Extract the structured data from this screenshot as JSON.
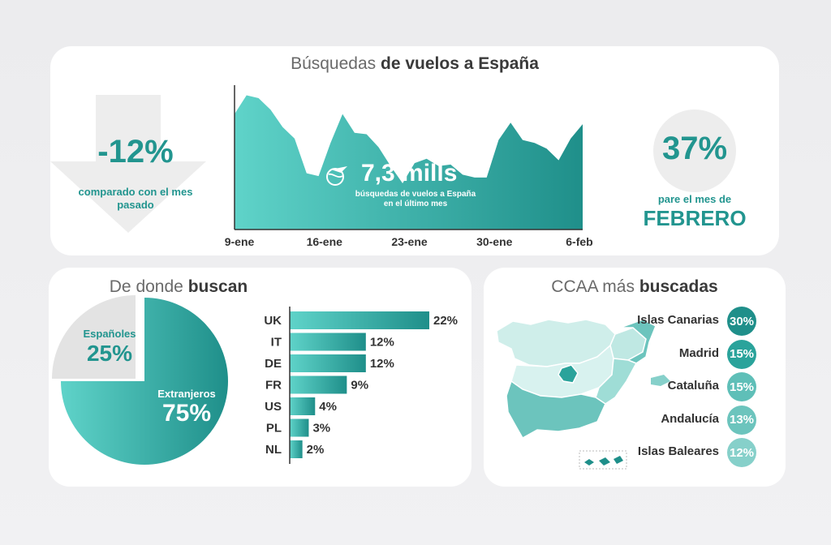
{
  "colors": {
    "teal_dark": "#1f8f8a",
    "teal_light": "#5fd3c9",
    "grey": "#e5e5e5"
  },
  "top": {
    "title_light": "Búsquedas",
    "title_bold": "de vuelos a España",
    "change_value": "-12%",
    "change_caption_line1": "comparado con el mes",
    "change_caption_line2": "pasado",
    "total_value": "7,3 mills",
    "total_caption_line1": "búsquedas de vuelos a España",
    "total_caption_line2": "en el último mes",
    "right_value": "37%",
    "right_caption": "pare el mes de",
    "right_month": "FEBRERO"
  },
  "origin": {
    "title_light": "De donde",
    "title_bold": "buscan",
    "spanish_label": "Españoles",
    "spanish_value": "25%",
    "foreign_label": "Extranjeros",
    "foreign_value": "75%"
  },
  "ccaa": {
    "title_light": "CCAA más",
    "title_bold": "buscadas",
    "regions": [
      {
        "name": "Islas Canarias",
        "value": "30%",
        "color": "#1f8f8a"
      },
      {
        "name": "Madrid",
        "value": "15%",
        "color": "#2aa39b"
      },
      {
        "name": "Cataluña",
        "value": "15%",
        "color": "#5fbfb8"
      },
      {
        "name": "Andalucía",
        "value": "13%",
        "color": "#6cc4bd"
      },
      {
        "name": "Islas Baleares",
        "value": "12%",
        "color": "#86d0ca"
      }
    ]
  },
  "chart_data": [
    {
      "type": "area",
      "title": "Búsquedas de vuelos a España",
      "x_ticks": [
        "9-ene",
        "16-ene",
        "23-ene",
        "30-ene",
        "6-feb"
      ],
      "values": [
        0.8,
        0.93,
        0.91,
        0.83,
        0.71,
        0.63,
        0.39,
        0.37,
        0.6,
        0.8,
        0.67,
        0.66,
        0.57,
        0.44,
        0.32,
        0.46,
        0.49,
        0.44,
        0.45,
        0.38,
        0.36,
        0.36,
        0.62,
        0.74,
        0.62,
        0.6,
        0.56,
        0.48,
        0.63,
        0.73
      ],
      "ylim": [
        0,
        1
      ]
    },
    {
      "type": "pie",
      "categories": [
        "Españoles",
        "Extranjeros"
      ],
      "values": [
        25,
        75
      ]
    },
    {
      "type": "bar",
      "orientation": "horizontal",
      "categories": [
        "UK",
        "IT",
        "DE",
        "FR",
        "US",
        "PL",
        "NL"
      ],
      "values": [
        22,
        12,
        12,
        9,
        4,
        3,
        2
      ],
      "labels": [
        "22%",
        "12%",
        "12%",
        "9%",
        "4%",
        "3%",
        "2%"
      ]
    }
  ]
}
